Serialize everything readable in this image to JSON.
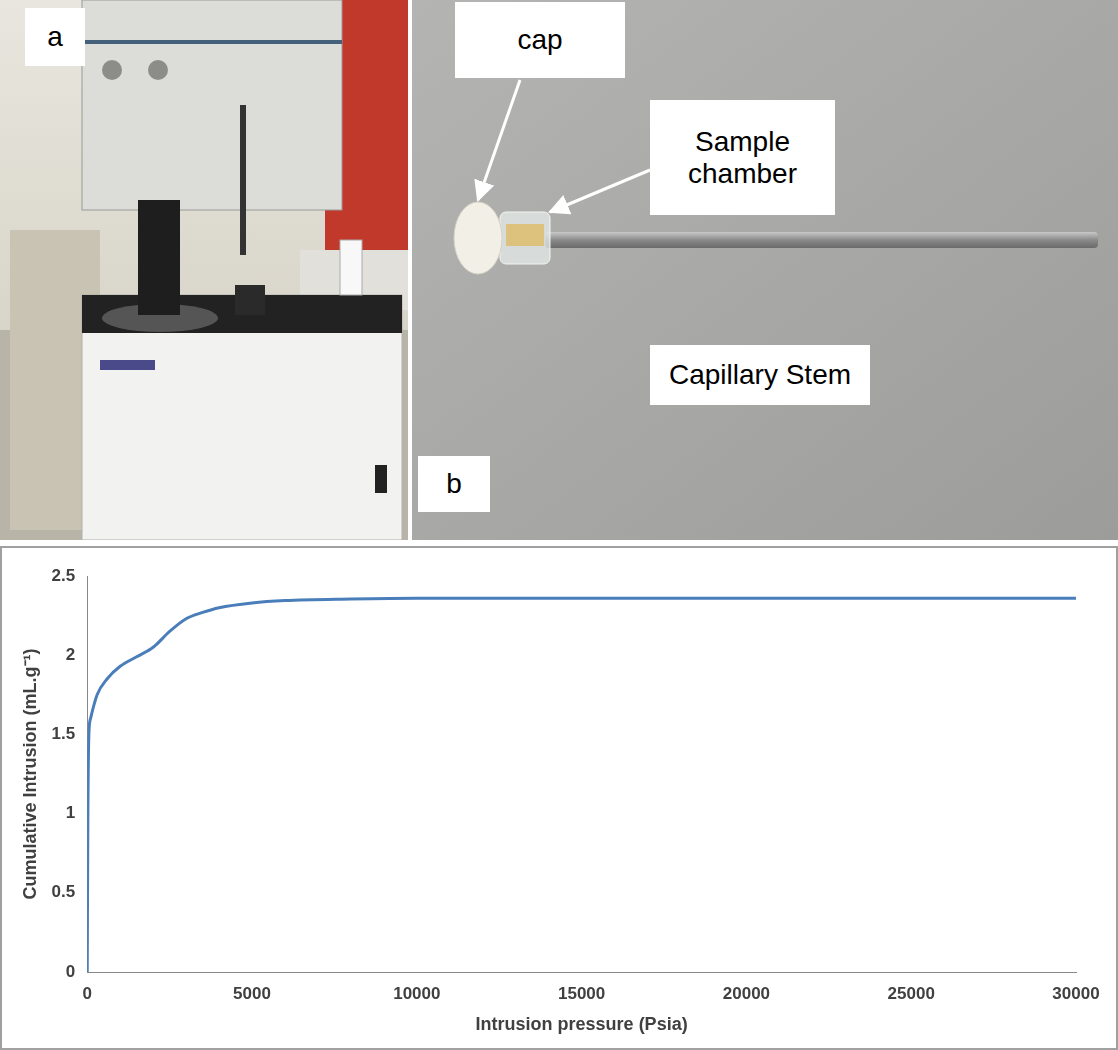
{
  "figure": {
    "panels": [
      {
        "letter": "a"
      },
      {
        "letter": "b",
        "annotations": [
          {
            "text": "cap"
          },
          {
            "text": "Sample chamber"
          },
          {
            "text": "Capillary Stem"
          }
        ]
      }
    ]
  },
  "chart_data": {
    "type": "line",
    "x_label": "Intrusion pressure (Psia)",
    "y_label": "Cumulative Intrusion (mL.g⁻¹)",
    "x": [
      0,
      20,
      50,
      100,
      300,
      600,
      1000,
      1500,
      2000,
      2500,
      3000,
      3500,
      4000,
      5000,
      6000,
      8000,
      10000,
      15000,
      20000,
      25000,
      30000
    ],
    "values": [
      0,
      1.0,
      1.5,
      1.6,
      1.75,
      1.85,
      1.93,
      1.99,
      2.05,
      2.15,
      2.23,
      2.27,
      2.3,
      2.33,
      2.345,
      2.355,
      2.36,
      2.36,
      2.36,
      2.36,
      2.36
    ],
    "color": "#4a7ebb",
    "xlim": [
      0,
      30000
    ],
    "xticks": [
      0,
      5000,
      10000,
      15000,
      20000,
      25000,
      30000
    ],
    "ylim": [
      0,
      2.5
    ],
    "yticks": [
      0,
      0.5,
      1,
      1.5,
      2,
      2.5
    ],
    "grid": false
  }
}
